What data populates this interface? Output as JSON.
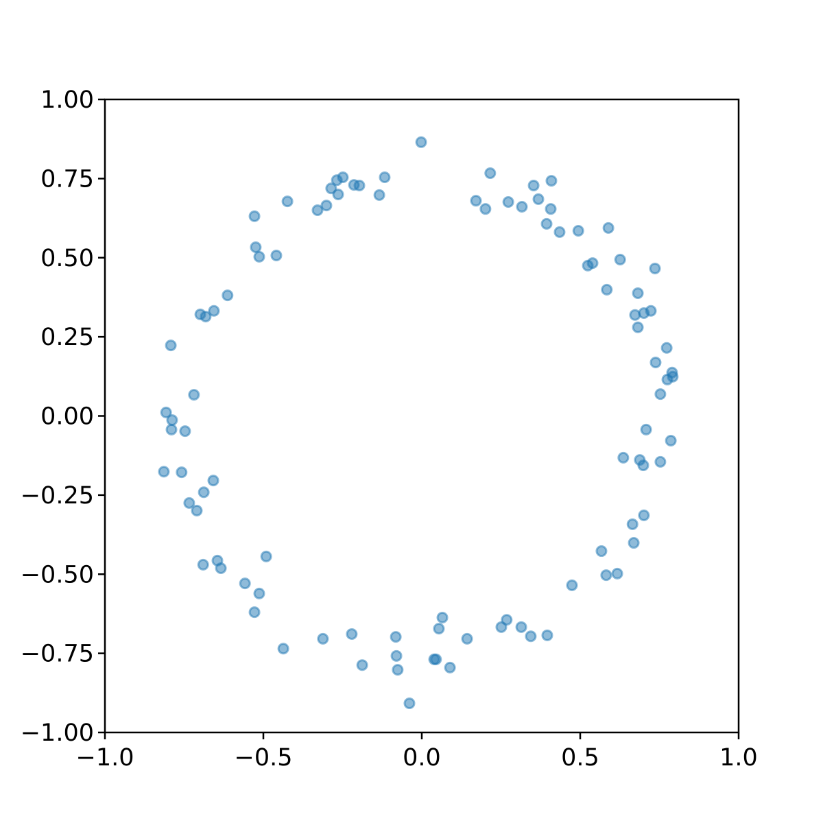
{
  "chart_data": {
    "type": "scatter",
    "x": [
      -0.002,
      0.216,
      -0.117,
      -0.249,
      -0.268,
      -0.286,
      -0.264,
      -0.214,
      -0.197,
      -0.134,
      -0.301,
      -0.329,
      -0.424,
      -0.528,
      -0.524,
      -0.513,
      -0.459,
      -0.613,
      -0.656,
      -0.699,
      -0.682,
      -0.792,
      -0.719,
      -0.807,
      -0.788,
      -0.79,
      -0.747,
      -0.814,
      -0.758,
      -0.658,
      -0.688,
      -0.734,
      -0.71,
      -0.69,
      -0.645,
      -0.634,
      -0.491,
      -0.558,
      -0.513,
      -0.528,
      -0.437,
      -0.312,
      -0.221,
      -0.188,
      -0.082,
      -0.08,
      -0.076,
      -0.039,
      0.039,
      0.045,
      0.054,
      0.065,
      0.089,
      0.143,
      0.251,
      0.268,
      0.314,
      0.344,
      0.396,
      0.474,
      0.567,
      0.582,
      0.617,
      0.669,
      0.665,
      0.701,
      0.636,
      0.688,
      0.699,
      0.753,
      0.708,
      0.786,
      0.753,
      0.775,
      0.792,
      0.79,
      0.738,
      0.773,
      0.682,
      0.673,
      0.701,
      0.723,
      0.682,
      0.584,
      0.736,
      0.524,
      0.539,
      0.626,
      0.589,
      0.494,
      0.435,
      0.394,
      0.407,
      0.368,
      0.353,
      0.409,
      0.316,
      0.273,
      0.201,
      0.171
    ],
    "values": [
      0.865,
      0.767,
      0.754,
      0.754,
      0.745,
      0.719,
      0.7,
      0.73,
      0.728,
      0.698,
      0.665,
      0.65,
      0.678,
      0.631,
      0.533,
      0.503,
      0.507,
      0.381,
      0.332,
      0.321,
      0.314,
      0.223,
      0.067,
      0.011,
      -0.013,
      -0.043,
      -0.048,
      -0.176,
      -0.178,
      -0.204,
      -0.241,
      -0.275,
      -0.299,
      -0.47,
      -0.457,
      -0.481,
      -0.444,
      -0.529,
      -0.561,
      -0.62,
      -0.735,
      -0.704,
      -0.689,
      -0.787,
      -0.698,
      -0.758,
      -0.802,
      -0.908,
      -0.769,
      -0.769,
      -0.672,
      -0.637,
      -0.795,
      -0.704,
      -0.667,
      -0.644,
      -0.667,
      -0.696,
      -0.693,
      -0.535,
      -0.427,
      -0.503,
      -0.498,
      -0.401,
      -0.342,
      -0.314,
      -0.132,
      -0.139,
      -0.156,
      -0.145,
      -0.043,
      -0.078,
      0.069,
      0.115,
      0.124,
      0.137,
      0.169,
      0.215,
      0.28,
      0.319,
      0.325,
      0.332,
      0.388,
      0.399,
      0.466,
      0.475,
      0.483,
      0.494,
      0.594,
      0.585,
      0.581,
      0.607,
      0.654,
      0.685,
      0.728,
      0.743,
      0.661,
      0.676,
      0.654,
      0.68
    ],
    "color": "#1f77b4",
    "xlim": [
      -1,
      1
    ],
    "ylim": [
      -1,
      1
    ],
    "xticks": [
      {
        "value": -1,
        "label": "−1.0"
      },
      {
        "value": -0.5,
        "label": "−0.5"
      },
      {
        "value": 0,
        "label": "0.0"
      },
      {
        "value": 0.5,
        "label": "0.5"
      },
      {
        "value": 1,
        "label": "1.0"
      }
    ],
    "yticks": [
      {
        "value": -1,
        "label": "−1.00"
      },
      {
        "value": -0.75,
        "label": "−0.75"
      },
      {
        "value": -0.5,
        "label": "−0.50"
      },
      {
        "value": -0.25,
        "label": "−0.25"
      },
      {
        "value": 0,
        "label": "0.00"
      },
      {
        "value": 0.25,
        "label": "0.25"
      },
      {
        "value": 0.5,
        "label": "0.50"
      },
      {
        "value": 0.75,
        "label": "0.75"
      },
      {
        "value": 1,
        "label": "1.00"
      }
    ]
  }
}
